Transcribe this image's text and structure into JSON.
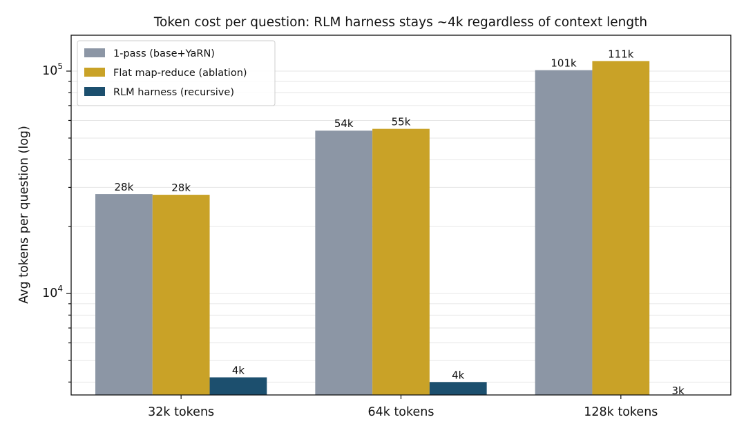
{
  "chart_data": {
    "type": "bar",
    "title": "Token cost per question: RLM harness stays ~4k regardless of context length",
    "xlabel": "",
    "ylabel": "Avg tokens per question (log)",
    "yscale": "log",
    "ylim": [
      3500,
      145000
    ],
    "yticks": [
      {
        "value": 10000,
        "base": "10",
        "exp": "4"
      },
      {
        "value": 100000,
        "base": "10",
        "exp": "5"
      }
    ],
    "grid": "y-major-and-minor",
    "legend_position": "top-left",
    "categories": [
      "32k tokens",
      "64k tokens",
      "128k tokens"
    ],
    "series": [
      {
        "name": "1-pass (base+YaRN)",
        "color": "#8c96a5",
        "values": [
          28000,
          54000,
          101000
        ],
        "labels": [
          "28k",
          "54k",
          "101k"
        ]
      },
      {
        "name": "Flat map-reduce (ablation)",
        "color": "#c9a227",
        "values": [
          27800,
          55000,
          111000
        ],
        "labels": [
          "28k",
          "55k",
          "111k"
        ]
      },
      {
        "name": "RLM harness (recursive)",
        "color": "#1c4f6e",
        "values": [
          4200,
          4000,
          3400
        ],
        "labels": [
          "4k",
          "4k",
          "3k"
        ]
      }
    ]
  }
}
